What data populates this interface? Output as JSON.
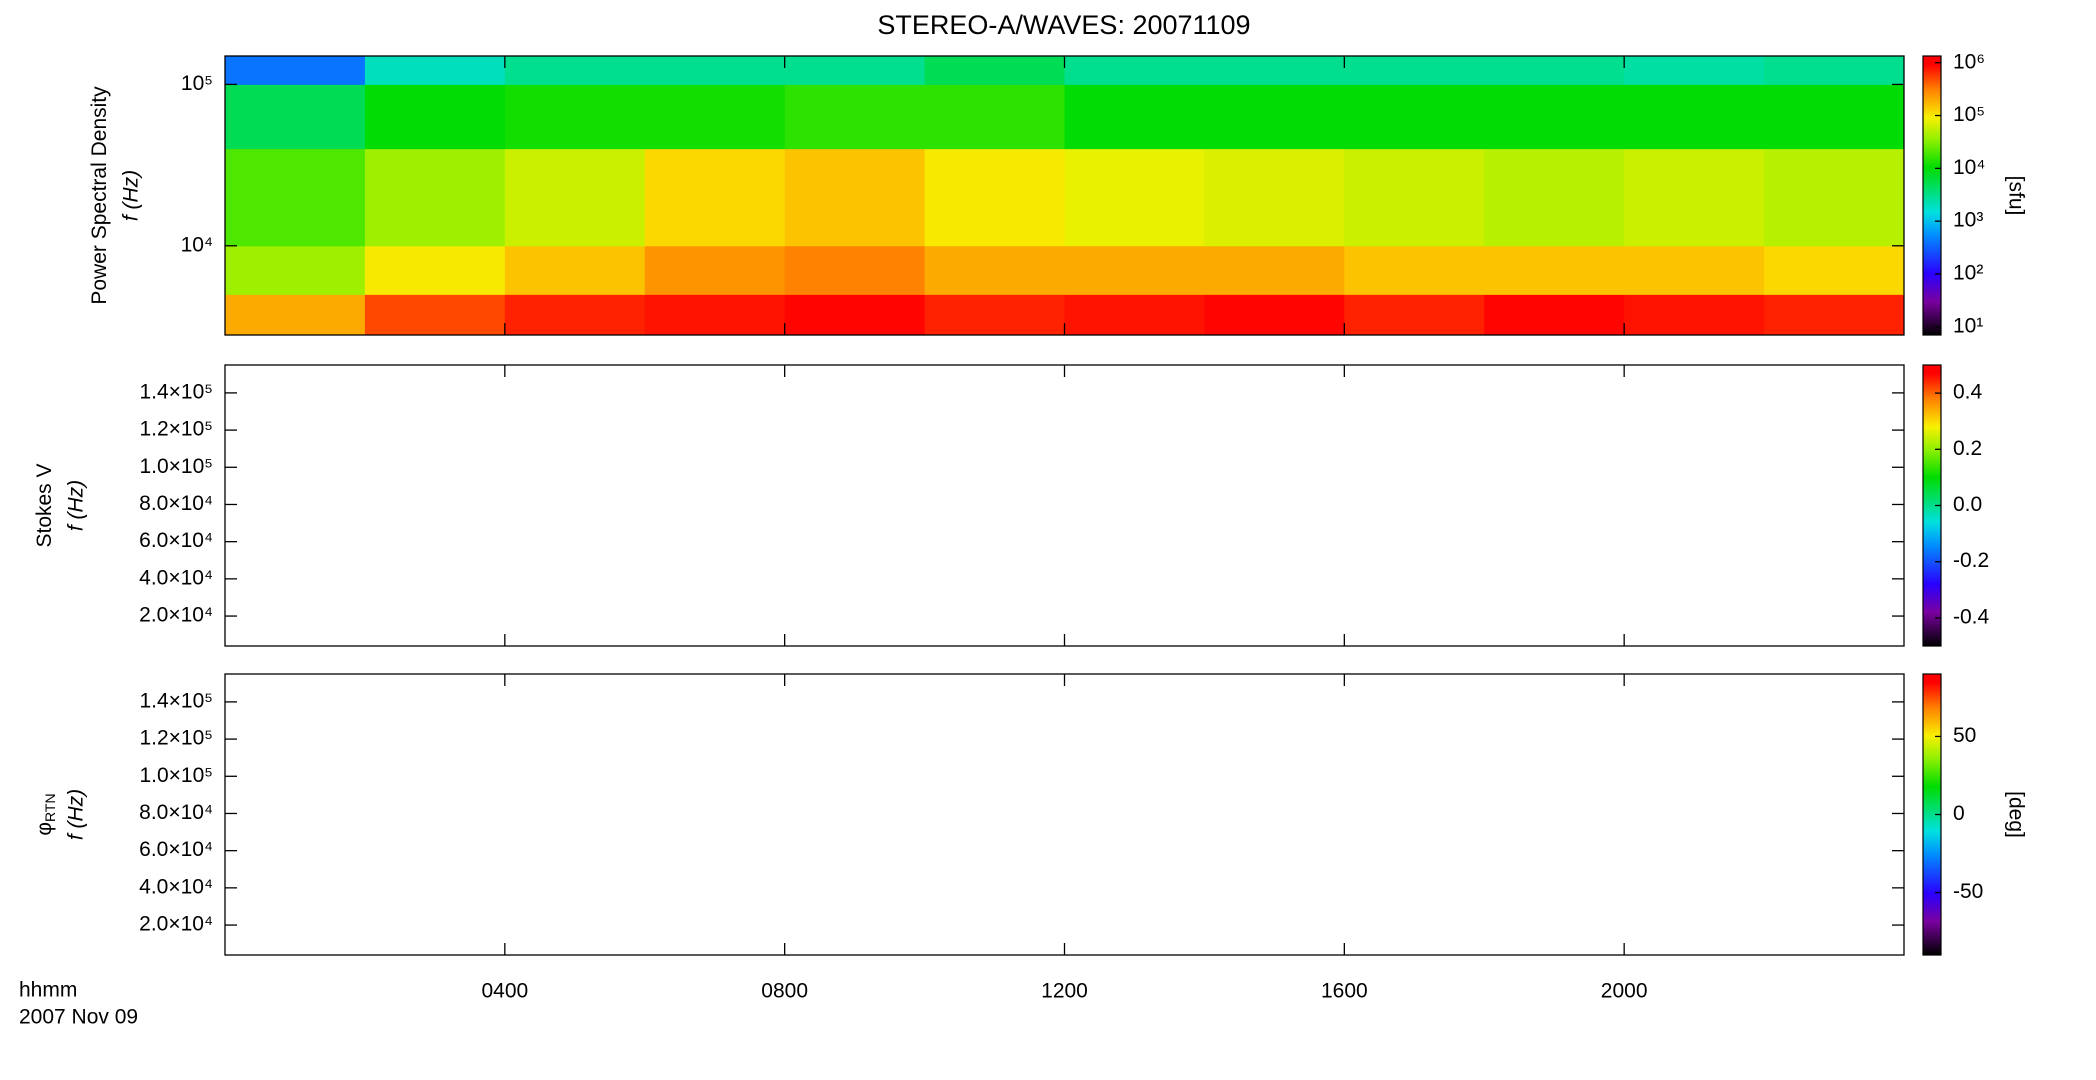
{
  "chart_data": [
    {
      "type": "heatmap",
      "title": "STEREO-A/WAVES: 20071109",
      "ylabel": [
        "Power Spectral Density",
        "f (Hz)"
      ],
      "ylog": true,
      "ylim": [
        2800,
        150000
      ],
      "yticks": [
        {
          "value": 10000,
          "label": "10⁴"
        },
        {
          "value": 100000,
          "label": "10⁵"
        }
      ],
      "x": [
        0,
        2,
        4,
        6,
        8,
        10,
        12,
        14,
        16,
        18,
        20,
        22,
        24
      ],
      "y": [
        2800,
        5000,
        10000,
        40000,
        100000,
        150000
      ],
      "values": [
        [
          200000,
          500000,
          700000,
          800000,
          900000,
          700000,
          800000,
          900000,
          700000,
          900000,
          800000,
          700000
        ],
        [
          40000,
          100000,
          150000,
          250000,
          300000,
          200000,
          200000,
          200000,
          150000,
          150000,
          150000,
          120000
        ],
        [
          20000,
          40000,
          60000,
          120000,
          150000,
          100000,
          80000,
          70000,
          60000,
          50000,
          60000,
          50000
        ],
        [
          5000,
          10000,
          12000,
          12000,
          15000,
          15000,
          10000,
          10000,
          10000,
          10000,
          10000,
          10000
        ],
        [
          400,
          2000,
          3000,
          3000,
          3000,
          5000,
          3000,
          3000,
          3000,
          3000,
          2500,
          3000
        ]
      ],
      "colormap": "rainbow",
      "clog": true,
      "clim": [
        7,
        1340000
      ],
      "cticks": [
        {
          "value": 10,
          "label": "10¹"
        },
        {
          "value": 100,
          "label": "10²"
        },
        {
          "value": 1000,
          "label": "10³"
        },
        {
          "value": 10000,
          "label": "10⁴"
        },
        {
          "value": 100000,
          "label": "10⁵"
        },
        {
          "value": 1000000,
          "label": "10⁶"
        }
      ],
      "clabel": "[sfu]"
    },
    {
      "type": "heatmap",
      "ylabel": [
        "Stokes V",
        "f (Hz)"
      ],
      "ylim": [
        3900,
        155000
      ],
      "yticks": [
        {
          "value": 20000,
          "label": "2.0×10⁴"
        },
        {
          "value": 40000,
          "label": "4.0×10⁴"
        },
        {
          "value": 60000,
          "label": "6.0×10⁴"
        },
        {
          "value": 80000,
          "label": "8.0×10⁴"
        },
        {
          "value": 100000,
          "label": "1.0×10⁵"
        },
        {
          "value": 120000,
          "label": "1.2×10⁵"
        },
        {
          "value": 140000,
          "label": "1.4×10⁵"
        }
      ],
      "colormap": "rainbow",
      "clim": [
        -0.5,
        0.5
      ],
      "cticks": [
        -0.4,
        -0.2,
        {
          "value": 0,
          "label": "0.0"
        },
        0.2,
        0.4
      ]
    },
    {
      "type": "heatmap",
      "ylabel": [
        "φ",
        "f (Hz)"
      ],
      "ylabel_subscript": "RTN",
      "ylim": [
        3900,
        155000
      ],
      "yticks": [
        {
          "value": 20000,
          "label": "2.0×10⁴"
        },
        {
          "value": 40000,
          "label": "4.0×10⁴"
        },
        {
          "value": 60000,
          "label": "6.0×10⁴"
        },
        {
          "value": 80000,
          "label": "8.0×10⁴"
        },
        {
          "value": 100000,
          "label": "1.0×10⁵"
        },
        {
          "value": 120000,
          "label": "1.2×10⁵"
        },
        {
          "value": 140000,
          "label": "1.4×10⁵"
        }
      ],
      "colormap": "rainbow",
      "clim": [
        -90,
        90
      ],
      "cticks": [
        -50,
        0,
        50
      ],
      "clabel": "[deg]",
      "xlim": [
        0,
        24
      ],
      "xticks": [
        {
          "value": 4,
          "label": "0400"
        },
        {
          "value": 8,
          "label": "0800"
        },
        {
          "value": 12,
          "label": "1200"
        },
        {
          "value": 16,
          "label": "1600"
        },
        {
          "value": 20,
          "label": "2000"
        }
      ],
      "xlabel": [
        "hhmm",
        "2007 Nov 09"
      ]
    }
  ]
}
